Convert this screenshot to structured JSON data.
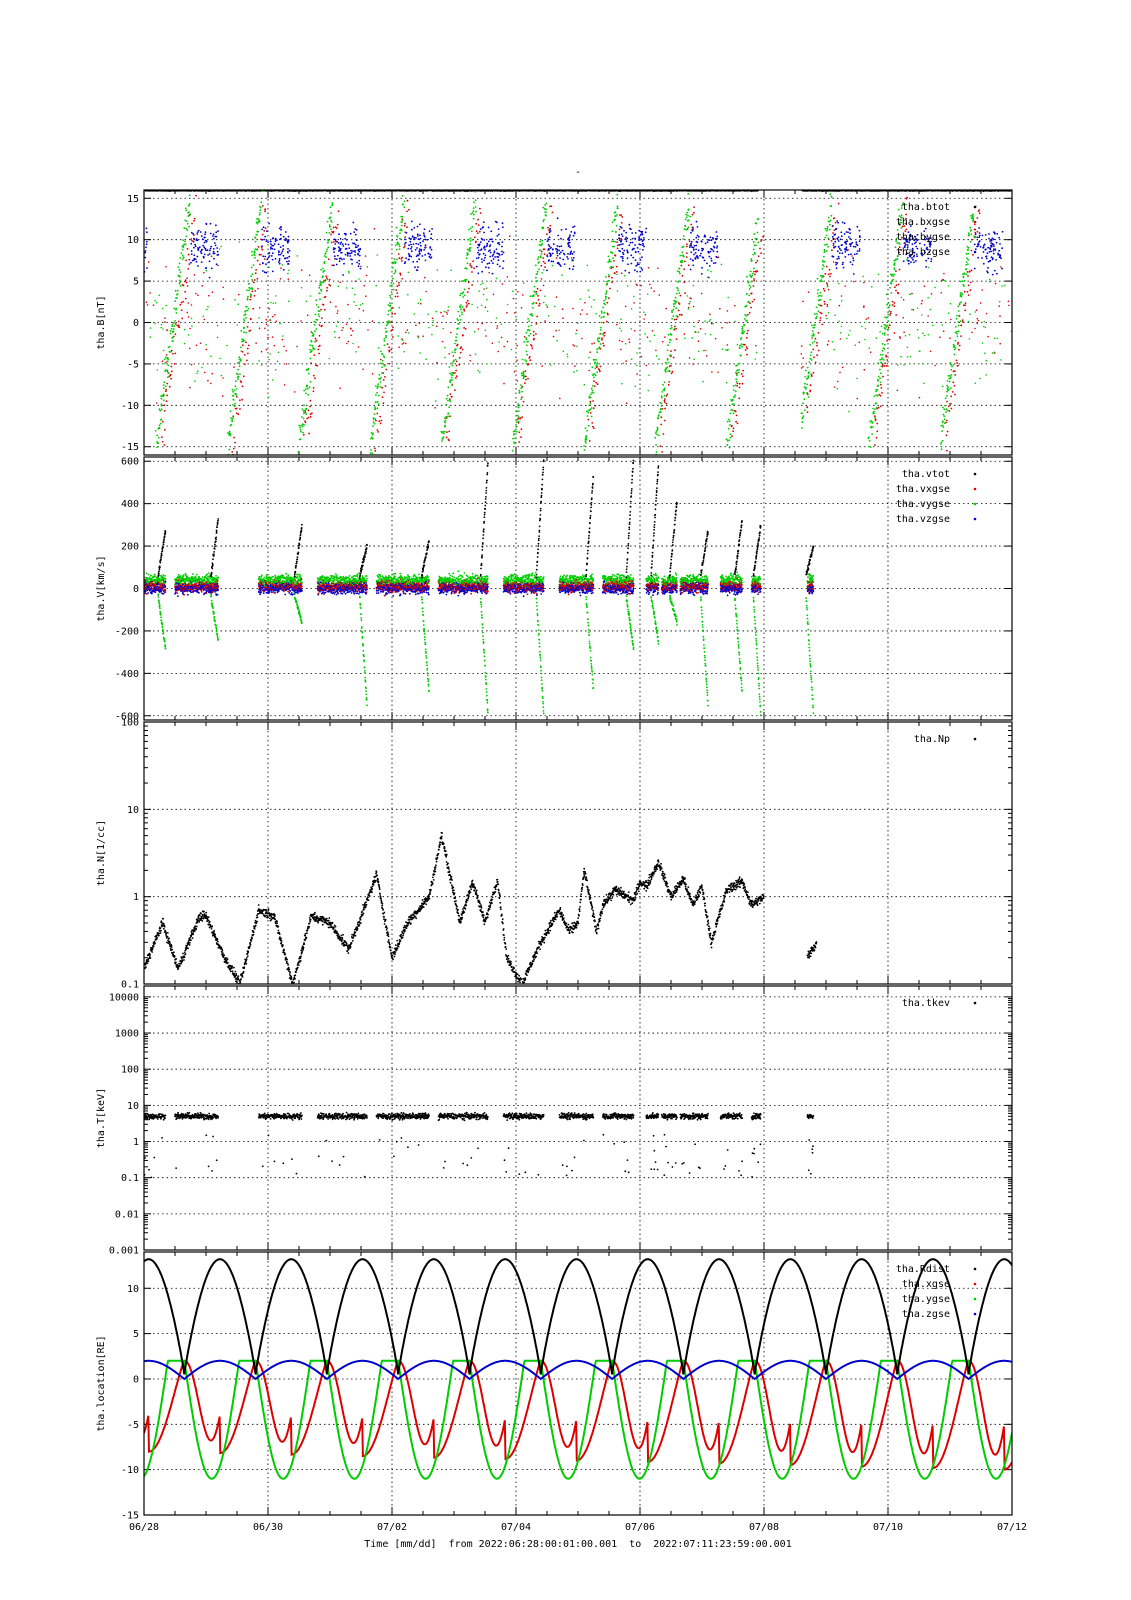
{
  "figure": {
    "title": "-",
    "xlabel": "Time [mm/dd]  from 2022:06:28:00:01:00.001  to  2022:07:11:23:59:00.001",
    "x_tick_labels": [
      "06/28",
      "06/30",
      "07/02",
      "07/04",
      "07/06",
      "07/08",
      "07/10",
      "07/12"
    ],
    "x_range_days": [
      0,
      14
    ],
    "grid": true
  },
  "chart_data": [
    {
      "type": "scatter",
      "ylabel": "tha.B[nT]",
      "ylim": [
        -16,
        16
      ],
      "y_scale": "linear",
      "yticks": [
        -15,
        -10,
        -5,
        0,
        5,
        10,
        15
      ],
      "legend": [
        "tha.btot",
        "tha.bxgse",
        "tha.bygse",
        "tha.bzgse"
      ],
      "legend_position": "top-right",
      "series": [
        {
          "name": "tha.btot",
          "color": "#000000",
          "style": "saturated high field near orbit perigees, 15+ nT"
        },
        {
          "name": "tha.bxgse",
          "color": "#dd0000",
          "style": "ramps from negative to positive near perigee passes"
        },
        {
          "name": "tha.bygse",
          "color": "#00cc00",
          "style": "ramps from negative to positive near perigee passes"
        },
        {
          "name": "tha.bzgse",
          "color": "#0000cc",
          "style": "5 to 15 nT clusters"
        }
      ]
    },
    {
      "type": "scatter",
      "ylabel": "tha.V[km/s]",
      "ylim": [
        -620,
        620
      ],
      "y_scale": "linear",
      "yticks": [
        -600,
        -400,
        -200,
        0,
        200,
        400,
        600
      ],
      "legend": [
        "tha.vtot",
        "tha.vxgse",
        "tha.vygse",
        "tha.vzgse"
      ],
      "legend_position": "top-right",
      "segments_days": [
        [
          0.0,
          0.35
        ],
        [
          0.5,
          1.2
        ],
        [
          1.85,
          2.55
        ],
        [
          2.8,
          3.6
        ],
        [
          3.75,
          4.6
        ],
        [
          4.75,
          5.55
        ],
        [
          5.8,
          6.45
        ],
        [
          6.7,
          7.25
        ],
        [
          7.4,
          7.9
        ],
        [
          8.1,
          8.3
        ],
        [
          8.35,
          8.6
        ],
        [
          8.65,
          9.1
        ],
        [
          9.3,
          9.65
        ],
        [
          9.8,
          9.95
        ],
        [
          10.7,
          10.8
        ]
      ],
      "series": [
        {
          "name": "tha.vtot",
          "color": "#000000",
          "peaks": [
            280,
            330,
            300,
            200,
            230,
            600,
            620,
            540,
            640,
            600,
            420
          ]
        },
        {
          "name": "tha.vxgse",
          "color": "#dd0000"
        },
        {
          "name": "tha.vygse",
          "color": "#00cc00",
          "troughs": [
            -290,
            -250,
            -160,
            -560,
            -500,
            -600,
            -600,
            -480
          ]
        },
        {
          "name": "tha.vzgse",
          "color": "#0000cc"
        }
      ]
    },
    {
      "type": "scatter",
      "ylabel": "tha.N[1/cc]",
      "ylim": [
        0.1,
        100
      ],
      "y_scale": "log",
      "yticks": [
        0.1,
        1,
        10,
        100
      ],
      "legend": [
        "tha.Np"
      ],
      "legend_position": "top-right",
      "series": [
        {
          "name": "tha.Np",
          "color": "#000000",
          "points_days": [
            [
              0.0,
              0.15
            ],
            [
              0.3,
              0.5
            ],
            [
              0.55,
              0.15
            ],
            [
              0.9,
              0.6
            ],
            [
              1.0,
              0.6
            ],
            [
              1.3,
              0.2
            ],
            [
              1.55,
              0.1
            ],
            [
              1.85,
              0.7
            ],
            [
              2.1,
              0.6
            ],
            [
              2.4,
              0.1
            ],
            [
              2.7,
              0.6
            ],
            [
              3.0,
              0.5
            ],
            [
              3.3,
              0.25
            ],
            [
              3.6,
              0.9
            ],
            [
              3.75,
              1.8
            ],
            [
              4.0,
              0.2
            ],
            [
              4.25,
              0.5
            ],
            [
              4.6,
              1.0
            ],
            [
              4.8,
              5.0
            ],
            [
              5.1,
              0.5
            ],
            [
              5.3,
              1.5
            ],
            [
              5.5,
              0.5
            ],
            [
              5.7,
              1.6
            ],
            [
              5.85,
              0.2
            ],
            [
              6.1,
              0.1
            ],
            [
              6.4,
              0.3
            ],
            [
              6.7,
              0.7
            ],
            [
              6.85,
              0.4
            ],
            [
              7.0,
              0.5
            ],
            [
              7.1,
              2.0
            ],
            [
              7.3,
              0.4
            ],
            [
              7.4,
              0.8
            ],
            [
              7.6,
              1.2
            ],
            [
              7.9,
              0.9
            ],
            [
              8.0,
              1.5
            ],
            [
              8.1,
              1.3
            ],
            [
              8.3,
              2.5
            ],
            [
              8.5,
              1.0
            ],
            [
              8.7,
              1.6
            ],
            [
              8.85,
              0.8
            ],
            [
              9.0,
              1.3
            ],
            [
              9.15,
              0.3
            ],
            [
              9.4,
              1.2
            ],
            [
              9.65,
              1.5
            ],
            [
              9.8,
              0.8
            ],
            [
              10.0,
              1.0
            ],
            [
              10.7,
              0.2
            ],
            [
              10.85,
              0.3
            ]
          ]
        }
      ]
    },
    {
      "type": "scatter",
      "ylabel": "tha.T[keV]",
      "ylim": [
        0.001,
        20000
      ],
      "y_scale": "log",
      "yticks": [
        0.001,
        0.01,
        0.1,
        1,
        10,
        100,
        1000,
        10000
      ],
      "ytick_labels": [
        "0.001",
        "0.01",
        "0.1",
        "1",
        "10",
        "100",
        "1000",
        "10000"
      ],
      "legend": [
        "tha.tkev"
      ],
      "legend_position": "top-right",
      "segments_days": [
        [
          0.0,
          0.35
        ],
        [
          0.5,
          1.2
        ],
        [
          1.85,
          2.55
        ],
        [
          2.8,
          3.6
        ],
        [
          3.75,
          4.6
        ],
        [
          4.75,
          5.55
        ],
        [
          5.8,
          6.45
        ],
        [
          6.7,
          7.25
        ],
        [
          7.4,
          7.9
        ],
        [
          8.1,
          8.3
        ],
        [
          8.35,
          8.6
        ],
        [
          8.65,
          9.1
        ],
        [
          9.3,
          9.65
        ],
        [
          9.8,
          9.95
        ],
        [
          10.7,
          10.8
        ]
      ],
      "series": [
        {
          "name": "tha.tkev",
          "color": "#000000",
          "typical_value": 5,
          "min_value": 0.05
        }
      ]
    },
    {
      "type": "line",
      "ylabel": "tha.location[RE]",
      "ylim": [
        -15,
        14
      ],
      "y_scale": "linear",
      "yticks": [
        -15,
        -10,
        -5,
        0,
        5,
        10
      ],
      "legend": [
        "tha.Rdist",
        "tha.xgse",
        "tha.ygse",
        "tha.zgse"
      ],
      "legend_position": "top-right",
      "orbit_period_days": 1.15,
      "perigee_days": [
        0.65,
        1.8,
        2.95,
        4.1,
        5.25,
        6.4,
        7.55,
        8.7,
        9.85,
        11.0,
        12.15,
        13.3
      ],
      "series": [
        {
          "name": "tha.Rdist",
          "color": "#000000",
          "apogee": 13.2,
          "perigee": 0.5
        },
        {
          "name": "tha.xgse",
          "color": "#dd0000",
          "min_start": -8.0,
          "min_end": -10.0,
          "max": 2.0
        },
        {
          "name": "tha.ygse",
          "color": "#00cc00",
          "min": -11.0,
          "max": 2.0
        },
        {
          "name": "tha.zgse",
          "color": "#0000cc",
          "max": 2.0,
          "min": 0.0
        }
      ]
    }
  ]
}
